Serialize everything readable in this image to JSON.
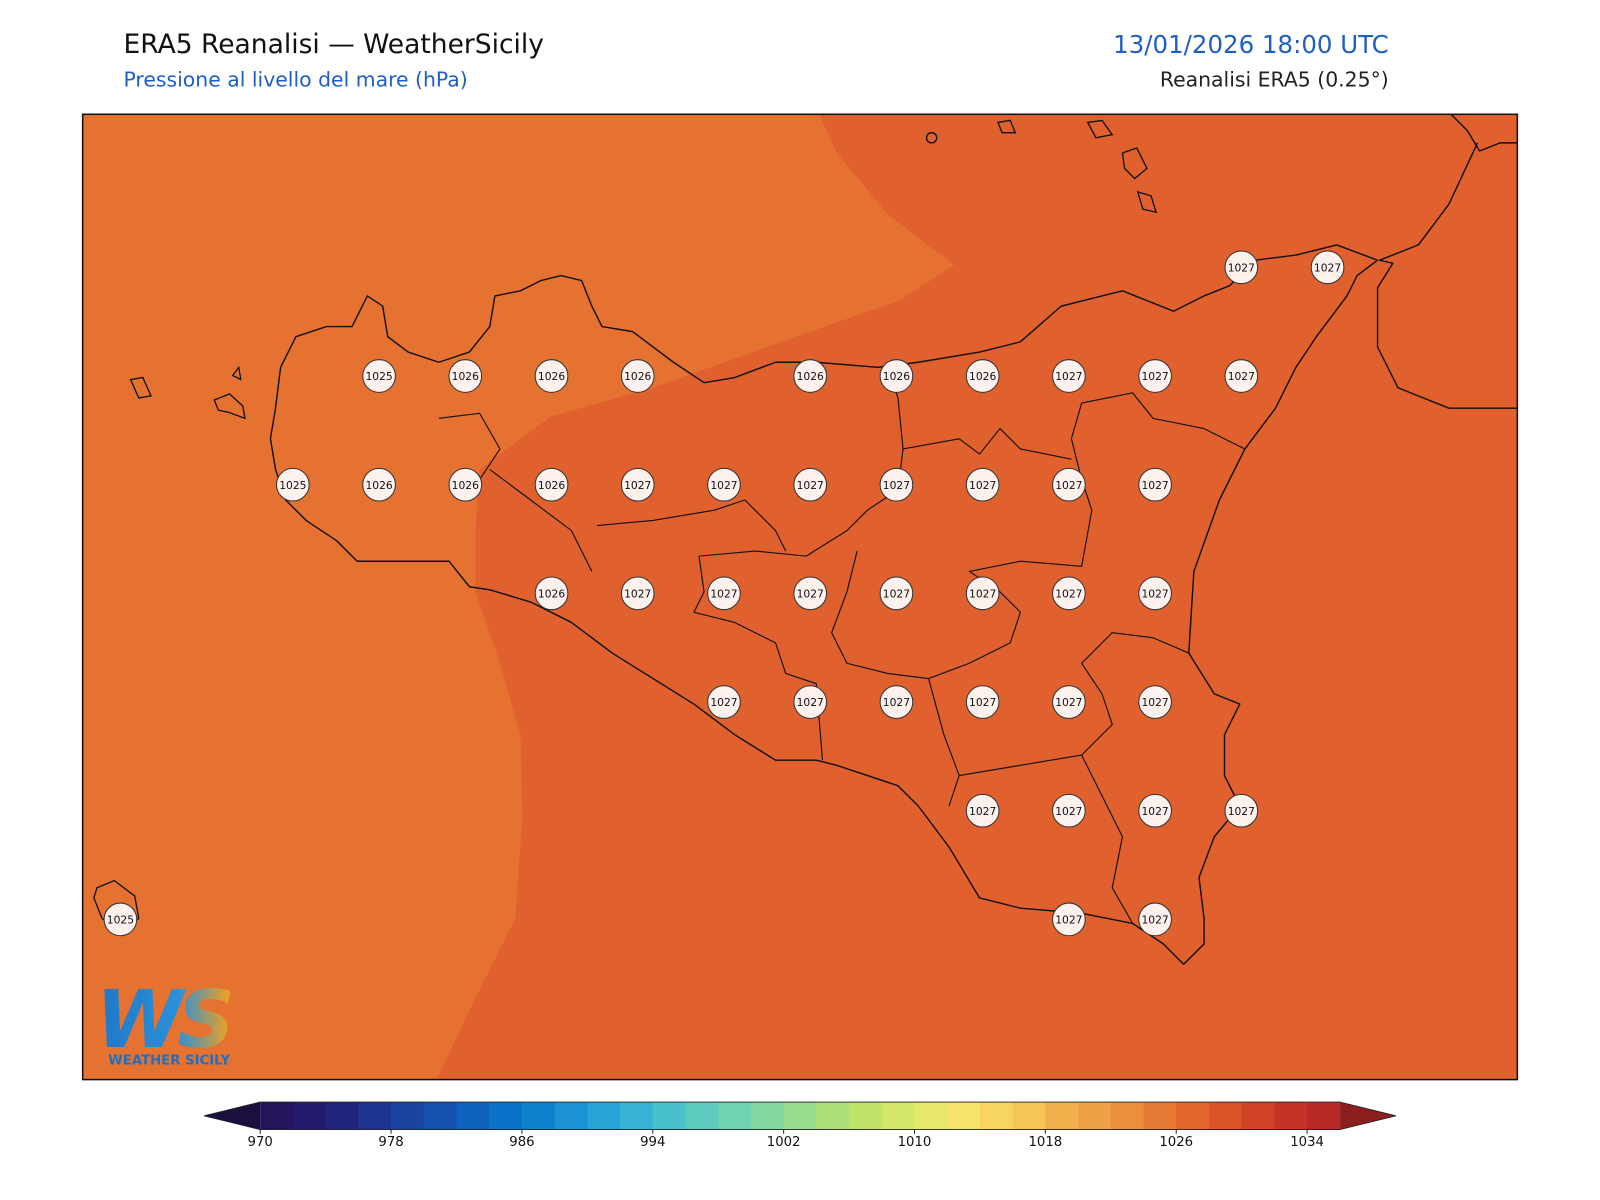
{
  "header": {
    "title": "ERA5 Reanalisi — WeatherSicily",
    "subtitle": "Pressione al livello del mare (hPa)",
    "datetime": "13/01/2026 18:00 UTC",
    "source": "Reanalisi ERA5 (0.25°)"
  },
  "stations": [
    1027,
    1027,
    1025,
    1026,
    1026,
    1026,
    1026,
    1026,
    1026,
    1027,
    1027,
    1027,
    1025,
    1026,
    1026,
    1026,
    1027,
    1027,
    1027,
    1027,
    1027,
    1027,
    1027,
    1026,
    1027,
    1027,
    1027,
    1027,
    1027,
    1027,
    1027,
    1027,
    1027,
    1027,
    1027,
    1027,
    1027,
    1027,
    1027,
    1027,
    1027,
    1025,
    1027,
    1027
  ],
  "colorbar": {
    "range": [
      970,
      1036
    ],
    "ticks": [
      970,
      978,
      986,
      994,
      1002,
      1010,
      1018,
      1026,
      1034
    ],
    "colors": [
      "#24155a",
      "#231a6d",
      "#21247d",
      "#1f3390",
      "#1b43a0",
      "#1552b0",
      "#0f62be",
      "#0a72c8",
      "#0d82cf",
      "#1a92d3",
      "#28a3d5",
      "#36b3d3",
      "#48c1ca",
      "#5ccabf",
      "#6fd2b0",
      "#83d8a0",
      "#98dd8c",
      "#acdf78",
      "#c0e36a",
      "#d4e76a",
      "#e6e86e",
      "#f6e36b",
      "#f8d460",
      "#f7c456",
      "#f2b04d",
      "#efa145",
      "#eb8f3d",
      "#e77a35",
      "#e3652e",
      "#db5329",
      "#d14327",
      "#c43426",
      "#b72a28"
    ],
    "under": "#1a0f3f",
    "over": "#8b1e1e"
  },
  "logo": {
    "letters": "WS",
    "text": "WEATHER SICILY"
  }
}
